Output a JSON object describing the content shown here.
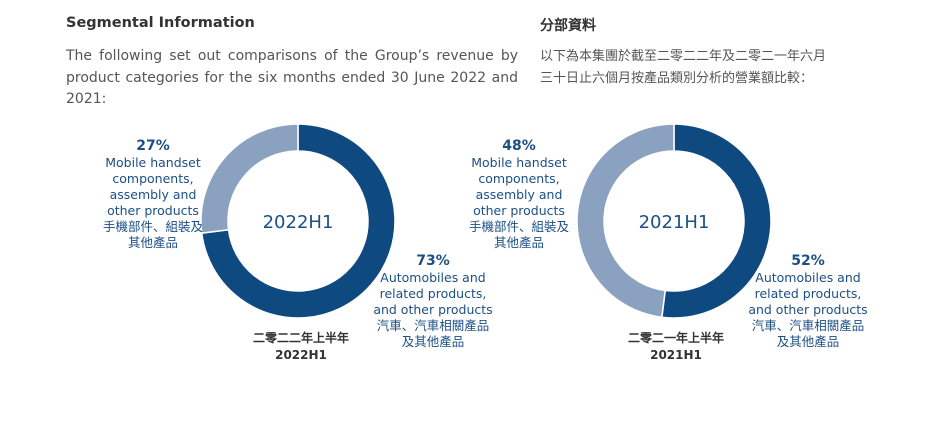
{
  "heading": {
    "en": "Segmental Information",
    "zh": "分部資料"
  },
  "intro": {
    "en": "The following set out comparisons of the Group’s revenue by product categories for the six months ended 30 June 2022 and 2021:",
    "zh_lines": [
      "以下為本集團於截至二零二二年及二零二一年六月",
      "三十日止六個月按產品類別分析的營業額比較："
    ]
  },
  "colors": {
    "dark": "#0e4a7f",
    "light": "#8aa2bf",
    "label": "#1c4f86"
  },
  "chart_data": [
    {
      "type": "pie",
      "title": "2022H1",
      "period_zh": "二零二二年上半年",
      "period_en": "2022H1",
      "categories": [
        "Automobiles and related products, and other products",
        "Mobile handset components, assembly and other products"
      ],
      "values": [
        73,
        27
      ],
      "labels": [
        {
          "pct": "73%",
          "lines": [
            "Automobiles and",
            "related products,",
            "and other products",
            "汽車、汽車相關產品",
            "及其他產品"
          ]
        },
        {
          "pct": "27%",
          "lines": [
            "Mobile handset",
            "components,",
            "assembly and",
            "other products",
            "手機部件、組裝及",
            "其他產品"
          ]
        }
      ]
    },
    {
      "type": "pie",
      "title": "2021H1",
      "period_zh": "二零二一年上半年",
      "period_en": "2021H1",
      "categories": [
        "Automobiles and related products, and other products",
        "Mobile handset components, assembly and other products"
      ],
      "values": [
        52,
        48
      ],
      "labels": [
        {
          "pct": "52%",
          "lines": [
            "Automobiles and",
            "related products,",
            "and other products",
            "汽車、汽車相關產品",
            "及其他產品"
          ]
        },
        {
          "pct": "48%",
          "lines": [
            "Mobile handset",
            "components,",
            "assembly and",
            "other products",
            "手機部件、組裝及",
            "其他產品"
          ]
        }
      ]
    }
  ]
}
